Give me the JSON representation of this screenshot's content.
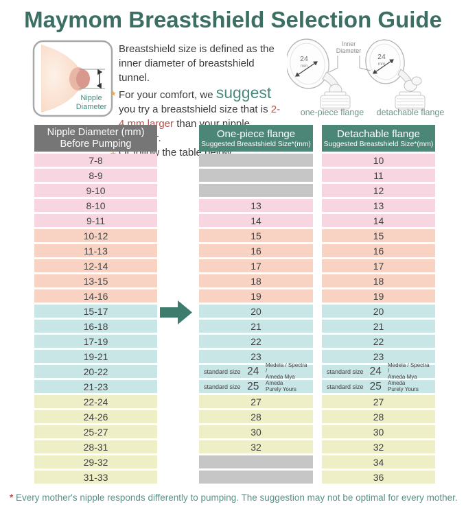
{
  "title": "Maymom Breastshield Selection Guide",
  "intro": {
    "sentence": "Breastshield size is defined as the inner diameter of breastshield tunnel.",
    "bullet_icon": "★",
    "bullet1": {
      "pre": "For your comfort, we ",
      "highlight": "suggest",
      "mid": " you try a breastshield size that is ",
      "emphasis": "2-4 mm larger",
      "post": " than your nipple diameter."
    },
    "bullet2": "Or follow the table below."
  },
  "breast_diagram": {
    "label_line1": "Nipple",
    "label_line2": "Diameter"
  },
  "flange_diagram": {
    "inner_diameter_line1": "Inner",
    "inner_diameter_line2": "Diameter",
    "size": "24",
    "unit": "mm",
    "caption_one_piece": "one-piece flange",
    "caption_detachable": "detachable flange"
  },
  "table": {
    "headers": {
      "nipple_line1": "Nipple Diameter (mm)",
      "nipple_line2": "Before Pumping",
      "one_piece_line1": "One-piece flange",
      "one_piece_line2": "Suggested Breastshield Size*(mm)",
      "detachable_line1": "Detachable flange",
      "detachable_line2": "Suggested Breastshield Size*(mm)"
    },
    "rows": [
      {
        "nipple": "7-8",
        "one_piece": null,
        "detachable": "10",
        "color": "pink"
      },
      {
        "nipple": "8-9",
        "one_piece": null,
        "detachable": "11",
        "color": "pink"
      },
      {
        "nipple": "9-10",
        "one_piece": null,
        "detachable": "12",
        "color": "pink"
      },
      {
        "nipple": "8-10",
        "one_piece": "13",
        "detachable": "13",
        "color": "pink"
      },
      {
        "nipple": "9-11",
        "one_piece": "14",
        "detachable": "14",
        "color": "pink"
      },
      {
        "nipple": "10-12",
        "one_piece": "15",
        "detachable": "15",
        "color": "salmon"
      },
      {
        "nipple": "11-13",
        "one_piece": "16",
        "detachable": "16",
        "color": "salmon"
      },
      {
        "nipple": "12-14",
        "one_piece": "17",
        "detachable": "17",
        "color": "salmon"
      },
      {
        "nipple": "13-15",
        "one_piece": "18",
        "detachable": "18",
        "color": "salmon"
      },
      {
        "nipple": "14-16",
        "one_piece": "19",
        "detachable": "19",
        "color": "salmon"
      },
      {
        "nipple": "15-17",
        "one_piece": "20",
        "detachable": "20",
        "color": "teal",
        "arrow": true
      },
      {
        "nipple": "16-18",
        "one_piece": "21",
        "detachable": "21",
        "color": "teal"
      },
      {
        "nipple": "17-19",
        "one_piece": "22",
        "detachable": "22",
        "color": "teal"
      },
      {
        "nipple": "19-21",
        "one_piece": "23",
        "detachable": "23",
        "color": "teal"
      },
      {
        "nipple": "20-22",
        "one_piece": {
          "label": "standard size",
          "size": "24",
          "brands": [
            "Medela / Spectra /",
            "Ameda Mya"
          ]
        },
        "detachable": {
          "label": "standard size",
          "size": "24",
          "brands": [
            "Medela / Spectra /",
            "Ameda Mya"
          ]
        },
        "color": "teal"
      },
      {
        "nipple": "21-23",
        "one_piece": {
          "label": "standard size",
          "size": "25",
          "brands": [
            "Ameda",
            "Purely Yours"
          ]
        },
        "detachable": {
          "label": "standard size",
          "size": "25",
          "brands": [
            "Ameda",
            "Purely Yours"
          ]
        },
        "color": "teal"
      },
      {
        "nipple": "22-24",
        "one_piece": "27",
        "detachable": "27",
        "color": "yellow"
      },
      {
        "nipple": "24-26",
        "one_piece": "28",
        "detachable": "28",
        "color": "yellow"
      },
      {
        "nipple": "25-27",
        "one_piece": "30",
        "detachable": "30",
        "color": "yellow"
      },
      {
        "nipple": "28-31",
        "one_piece": "32",
        "detachable": "32",
        "color": "yellow"
      },
      {
        "nipple": "29-32",
        "one_piece": null,
        "detachable": "34",
        "color": "yellow"
      },
      {
        "nipple": "31-33",
        "one_piece": null,
        "detachable": "36",
        "color": "yellow"
      }
    ]
  },
  "footer": {
    "asterisk": "*",
    "text": " Every mother's nipple responds differently to pumping. The suggestion may not be optimal for every mother."
  },
  "colors": {
    "title_teal": "#3c6f63",
    "header_gray": "#767676",
    "header_teal": "#4b8677",
    "row_pink": "#f8d6e1",
    "row_salmon": "#f8d2c3",
    "row_teal": "#c9e6e7",
    "row_yellow": "#eeeec7",
    "cell_gray": "#c6c6c6",
    "arrow_teal": "#3e7c6d",
    "accent_suggest": "#4a8a7e",
    "accent_red": "#b5534c",
    "star_orange": "#eda943",
    "footer_teal": "#579288"
  }
}
